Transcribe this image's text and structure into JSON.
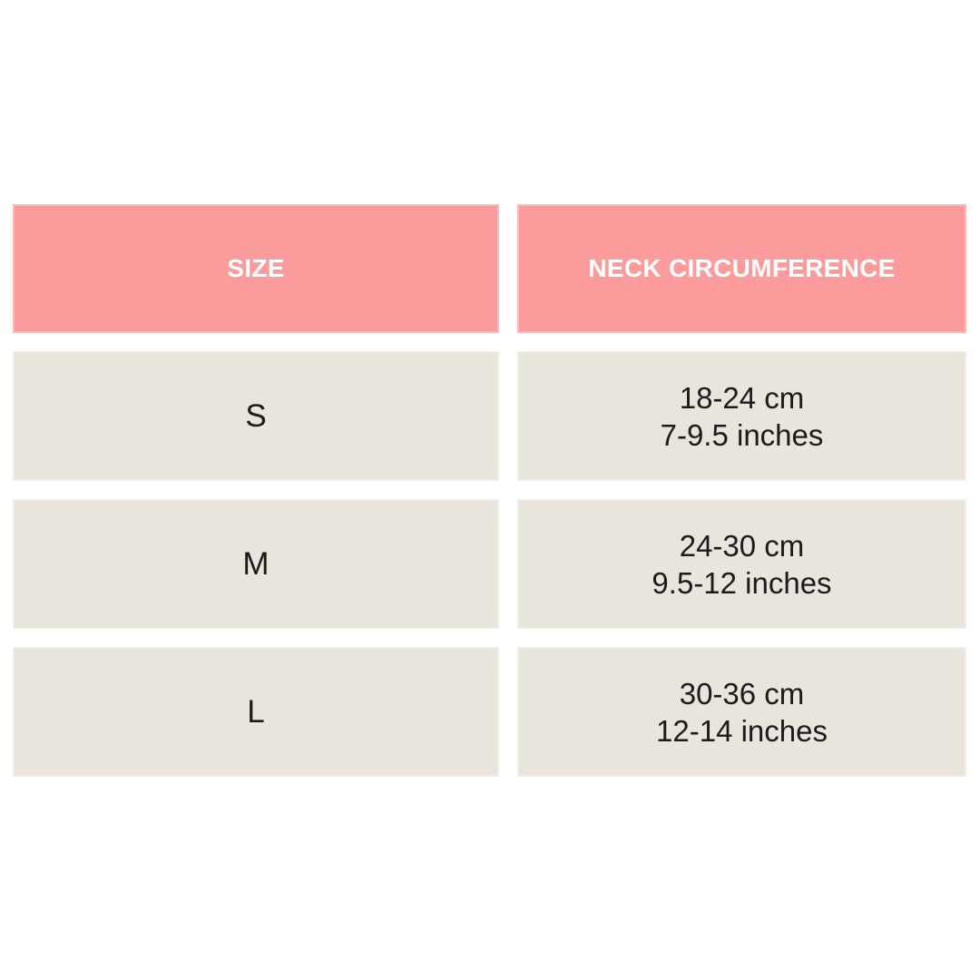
{
  "chart_data": {
    "type": "table",
    "columns": [
      "SIZE",
      "NECK CIRCUMFERENCE"
    ],
    "rows": [
      {
        "size": "S",
        "neck_cm": "18-24 cm",
        "neck_inches": "7-9.5 inches"
      },
      {
        "size": "M",
        "neck_cm": "24-30 cm",
        "neck_inches": "9.5-12 inches"
      },
      {
        "size": "L",
        "neck_cm": "30-36 cm",
        "neck_inches": "12-14 inches"
      }
    ],
    "layout": {
      "legend": "none",
      "grid": "off",
      "header_position": "top"
    }
  },
  "colors": {
    "header_bg": "#FB9B9B",
    "header_text": "#FFFFFF",
    "row_bg": "#E9E5DC",
    "body_text": "#1B1B1B",
    "page_bg": "#FFFFFF"
  }
}
